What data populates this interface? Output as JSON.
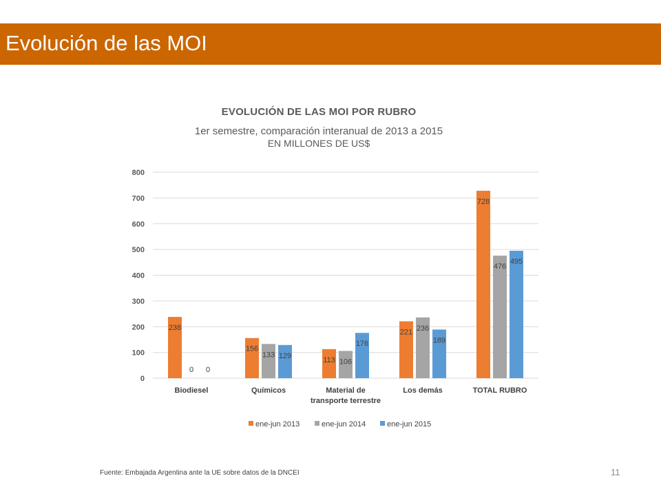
{
  "slide": {
    "title": "Evolución de las MOI",
    "accent_color": "#cc6600",
    "footer_source": "Fuente: Embajada  Argentina ante la UE sobre datos de la DNCEI",
    "page_number": "11"
  },
  "chart_data": {
    "type": "bar",
    "title": "EVOLUCIÓN DE LAS MOI POR RUBRO",
    "subtitle": "1er semestre, comparación interanual de 2013 a 2015",
    "unit_label": "EN MILLONES DE US$",
    "categories": [
      [
        "Biodiesel"
      ],
      [
        "Químicos"
      ],
      [
        "Material de",
        "transporte terrestre"
      ],
      [
        "Los demás"
      ],
      [
        "TOTAL RUBRO"
      ]
    ],
    "series": [
      {
        "name": "ene-jun 2013",
        "color": "#ed7d31",
        "values": [
          238,
          156,
          113,
          221,
          728
        ],
        "labels": [
          "238",
          "156",
          "113",
          "221",
          "728"
        ]
      },
      {
        "name": "ene-jun 2014",
        "color": "#a5a5a5",
        "values": [
          0,
          133,
          106,
          236,
          476
        ],
        "labels": [
          "0",
          "133",
          "106",
          "236",
          "476"
        ]
      },
      {
        "name": "ene-jun 2015",
        "color": "#5b9bd5",
        "values": [
          0,
          129,
          176,
          189,
          495
        ],
        "labels": [
          "0",
          "129",
          "176",
          "189",
          "495"
        ]
      }
    ],
    "ylim": [
      0,
      800
    ],
    "yticks": [
      "0",
      "100",
      "200",
      "300",
      "400",
      "500",
      "600",
      "700",
      "800"
    ],
    "grid": true,
    "legend_position": "bottom"
  }
}
